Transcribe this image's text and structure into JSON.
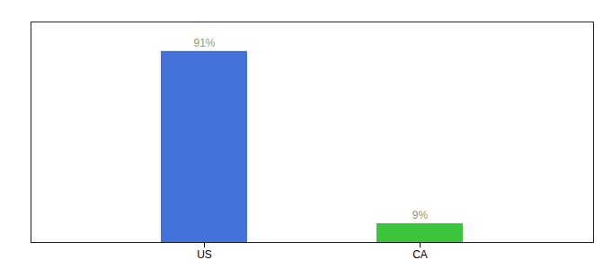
{
  "chart_data": {
    "type": "bar",
    "categories": [
      "US",
      "CA"
    ],
    "values": [
      91,
      9
    ],
    "colors": [
      "#4472DB",
      "#3DC43D"
    ],
    "ylim": [
      0,
      105
    ],
    "data_labels": true,
    "value_labels": [
      "91%",
      "9%"
    ],
    "tick_labels": "x",
    "grid": false
  }
}
